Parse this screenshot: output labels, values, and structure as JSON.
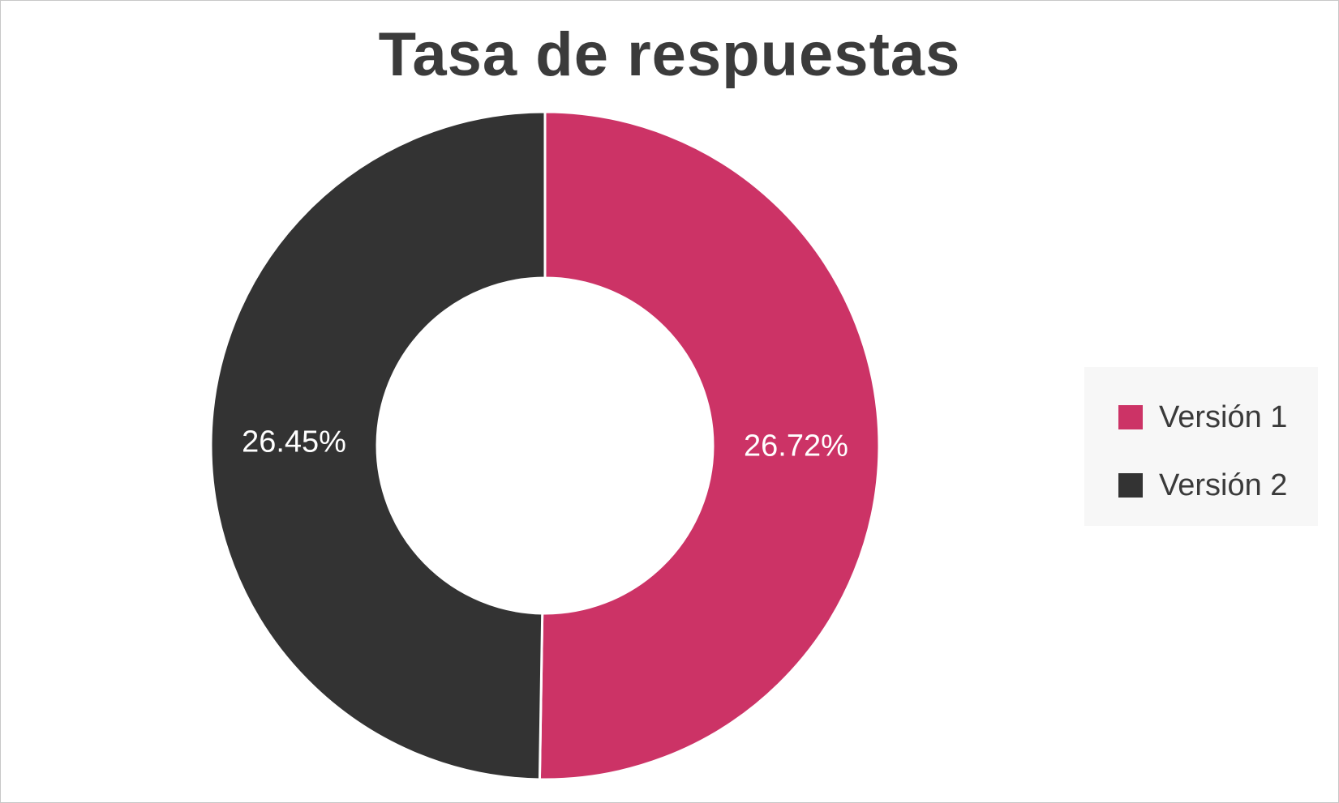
{
  "chart_data": {
    "type": "pie",
    "variant": "donut",
    "title": "Tasa de respuestas",
    "slices": [
      {
        "name": "Versión 1",
        "value": 26.72,
        "label": "26.72%",
        "color": "#cc3366"
      },
      {
        "name": "Versión 2",
        "value": 26.45,
        "label": "26.45%",
        "color": "#333333"
      }
    ],
    "legend": {
      "position": "right",
      "entries": [
        "Versión 1",
        "Versión 2"
      ]
    },
    "start_angle": "top",
    "direction": "clockwise"
  }
}
